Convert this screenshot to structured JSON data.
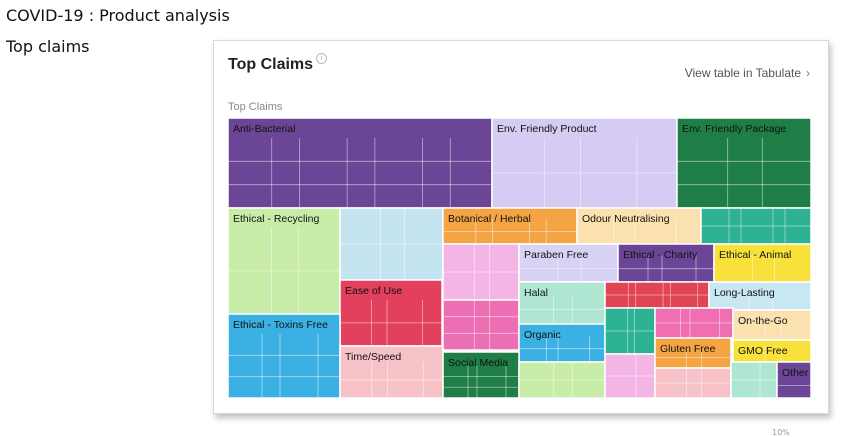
{
  "page": {
    "title": "COVID-19 : Product analysis",
    "subtitle": "Top claims"
  },
  "card": {
    "title": "Top Claims",
    "info_icon": "info-icon",
    "view_link": "View table in Tabulate",
    "chevron": "›",
    "chart_caption": "Top Claims",
    "footer_mark": "10%"
  },
  "chart_data": {
    "type": "treemap",
    "title": "Top Claims",
    "categories": [
      {
        "name": "Anti-Bacterial",
        "color": "#6b4696",
        "sub_blocks": 16
      },
      {
        "name": "Env. Friendly Product",
        "color": "#d5cbf3",
        "sub_blocks": 6
      },
      {
        "name": "Env. Friendly Package",
        "color": "#1f7e45",
        "sub_blocks": 8
      },
      {
        "name": "Ethical - Recycling",
        "color": "#c8eda9",
        "sub_blocks": 6
      },
      {
        "name": "",
        "color": "#c4e4f2",
        "sub_blocks": 6
      },
      {
        "name": "Botanical / Herbal",
        "color": "#f4a442",
        "sub_blocks": 8
      },
      {
        "name": "Odour Neutralising",
        "color": "#fbe1b0",
        "sub_blocks": 4
      },
      {
        "name": "",
        "color": "#2db394",
        "sub_blocks": 8
      },
      {
        "name": "",
        "color": "#f3b5e4",
        "sub_blocks": 6
      },
      {
        "name": "Paraben Free",
        "color": "#d8d2f5",
        "sub_blocks": 4
      },
      {
        "name": "Ethical - Charity",
        "color": "#6b4696",
        "sub_blocks": 6
      },
      {
        "name": "Ethical - Animal",
        "color": "#f7e13a",
        "sub_blocks": 3
      },
      {
        "name": "Ease of Use",
        "color": "#e2405c",
        "sub_blocks": 8
      },
      {
        "name": "",
        "color": "#ec6fb3",
        "sub_blocks": 8
      },
      {
        "name": "Halal",
        "color": "#aee6d2",
        "sub_blocks": 4
      },
      {
        "name": "",
        "color": "#e14553",
        "sub_blocks": 8
      },
      {
        "name": "Long-Lasting",
        "color": "#c9e6f3",
        "sub_blocks": 3
      },
      {
        "name": "Ethical - Toxins Free",
        "color": "#3ab0e3",
        "sub_blocks": 10
      },
      {
        "name": "Organic",
        "color": "#3ab0e3",
        "sub_blocks": 6
      },
      {
        "name": "",
        "color": "#2db394",
        "sub_blocks": 6
      },
      {
        "name": "",
        "color": "#f06fb3",
        "sub_blocks": 6
      },
      {
        "name": "On-the-Go",
        "color": "#fbe1b0",
        "sub_blocks": 3
      },
      {
        "name": "Time/Speed",
        "color": "#f7c2c7",
        "sub_blocks": 8
      },
      {
        "name": "Social Media",
        "color": "#1f7e45",
        "sub_blocks": 10
      },
      {
        "name": "",
        "color": "#c8eda9",
        "sub_blocks": 4
      },
      {
        "name": "",
        "color": "#f3b5e4",
        "sub_blocks": 4
      },
      {
        "name": "Gluten Free",
        "color": "#f4a442",
        "sub_blocks": 4
      },
      {
        "name": "GMO Free",
        "color": "#f7e13a",
        "sub_blocks": 3
      },
      {
        "name": "",
        "color": "#f7c2c7",
        "sub_blocks": 4
      },
      {
        "name": "",
        "color": "#aee6d2",
        "sub_blocks": 4
      },
      {
        "name": "Other",
        "color": "#6b4696",
        "sub_blocks": 2
      }
    ]
  }
}
